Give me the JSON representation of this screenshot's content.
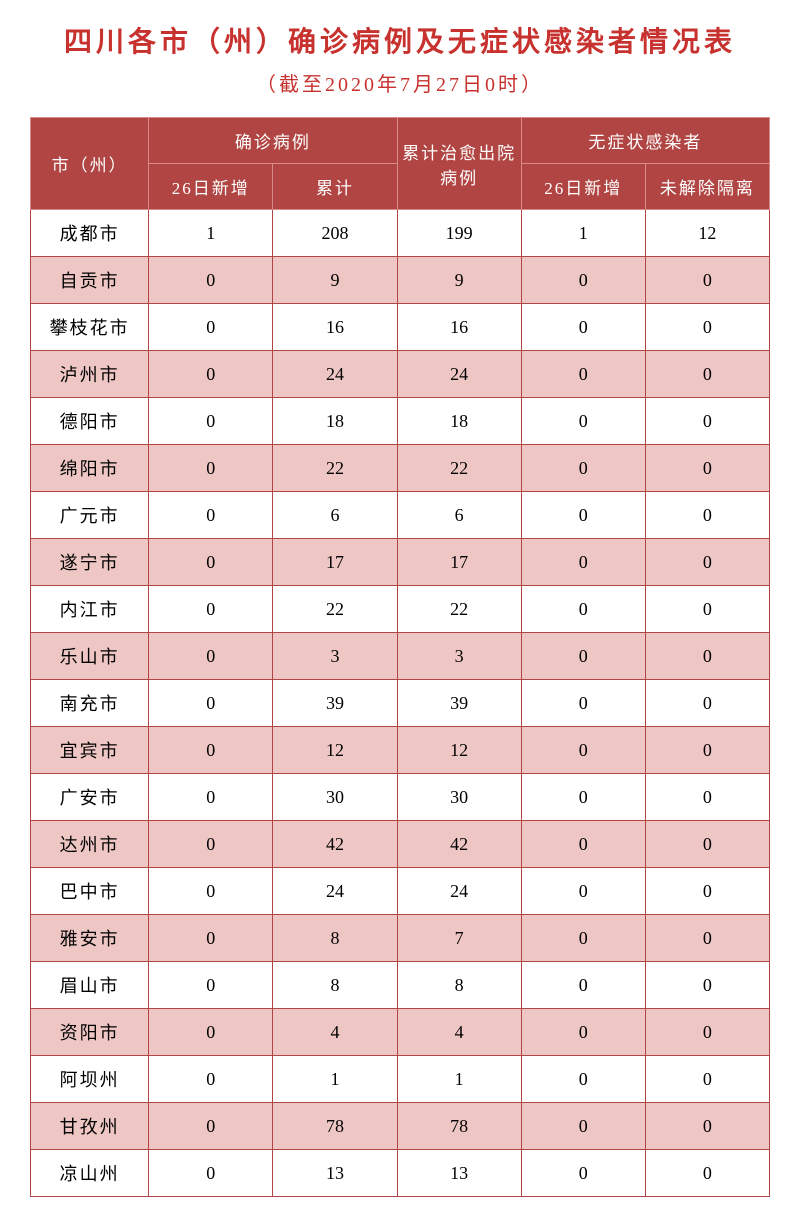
{
  "title": "四川各市（州）确诊病例及无症状感染者情况表",
  "subtitle": "（截至2020年7月27日0时）",
  "headers": {
    "city": "市（州）",
    "confirmed_group": "确诊病例",
    "new_26": "26日新增",
    "cumulative": "累计",
    "discharged": "累计治愈出院病例",
    "asymptomatic_group": "无症状感染者",
    "asym_new_26": "26日新增",
    "not_released": "未解除隔离"
  },
  "rows": [
    {
      "city": "成都市",
      "new": "1",
      "cum": "208",
      "dis": "199",
      "anew": "1",
      "anr": "12"
    },
    {
      "city": "自贡市",
      "new": "0",
      "cum": "9",
      "dis": "9",
      "anew": "0",
      "anr": "0"
    },
    {
      "city": "攀枝花市",
      "new": "0",
      "cum": "16",
      "dis": "16",
      "anew": "0",
      "anr": "0"
    },
    {
      "city": "泸州市",
      "new": "0",
      "cum": "24",
      "dis": "24",
      "anew": "0",
      "anr": "0"
    },
    {
      "city": "德阳市",
      "new": "0",
      "cum": "18",
      "dis": "18",
      "anew": "0",
      "anr": "0"
    },
    {
      "city": "绵阳市",
      "new": "0",
      "cum": "22",
      "dis": "22",
      "anew": "0",
      "anr": "0"
    },
    {
      "city": "广元市",
      "new": "0",
      "cum": "6",
      "dis": "6",
      "anew": "0",
      "anr": "0"
    },
    {
      "city": "遂宁市",
      "new": "0",
      "cum": "17",
      "dis": "17",
      "anew": "0",
      "anr": "0"
    },
    {
      "city": "内江市",
      "new": "0",
      "cum": "22",
      "dis": "22",
      "anew": "0",
      "anr": "0"
    },
    {
      "city": "乐山市",
      "new": "0",
      "cum": "3",
      "dis": "3",
      "anew": "0",
      "anr": "0"
    },
    {
      "city": "南充市",
      "new": "0",
      "cum": "39",
      "dis": "39",
      "anew": "0",
      "anr": "0"
    },
    {
      "city": "宜宾市",
      "new": "0",
      "cum": "12",
      "dis": "12",
      "anew": "0",
      "anr": "0"
    },
    {
      "city": "广安市",
      "new": "0",
      "cum": "30",
      "dis": "30",
      "anew": "0",
      "anr": "0"
    },
    {
      "city": "达州市",
      "new": "0",
      "cum": "42",
      "dis": "42",
      "anew": "0",
      "anr": "0"
    },
    {
      "city": "巴中市",
      "new": "0",
      "cum": "24",
      "dis": "24",
      "anew": "0",
      "anr": "0"
    },
    {
      "city": "雅安市",
      "new": "0",
      "cum": "8",
      "dis": "7",
      "anew": "0",
      "anr": "0"
    },
    {
      "city": "眉山市",
      "new": "0",
      "cum": "8",
      "dis": "8",
      "anew": "0",
      "anr": "0"
    },
    {
      "city": "资阳市",
      "new": "0",
      "cum": "4",
      "dis": "4",
      "anew": "0",
      "anr": "0"
    },
    {
      "city": "阿坝州",
      "new": "0",
      "cum": "1",
      "dis": "1",
      "anew": "0",
      "anr": "0"
    },
    {
      "city": "甘孜州",
      "new": "0",
      "cum": "78",
      "dis": "78",
      "anew": "0",
      "anr": "0"
    },
    {
      "city": "凉山州",
      "new": "0",
      "cum": "13",
      "dis": "13",
      "anew": "0",
      "anr": "0"
    }
  ],
  "styling": {
    "title_color": "#c7322f",
    "header_bg": "#b14543",
    "header_fg": "#ffffff",
    "row_odd_bg": "#ffffff",
    "row_even_bg": "#eec7c4",
    "border_color": "#b14543",
    "header_border_color": "#d98a88",
    "title_fontsize": 28,
    "subtitle_fontsize": 20,
    "header_fontsize": 17,
    "body_fontsize": 18,
    "font_family": "SimSun"
  }
}
